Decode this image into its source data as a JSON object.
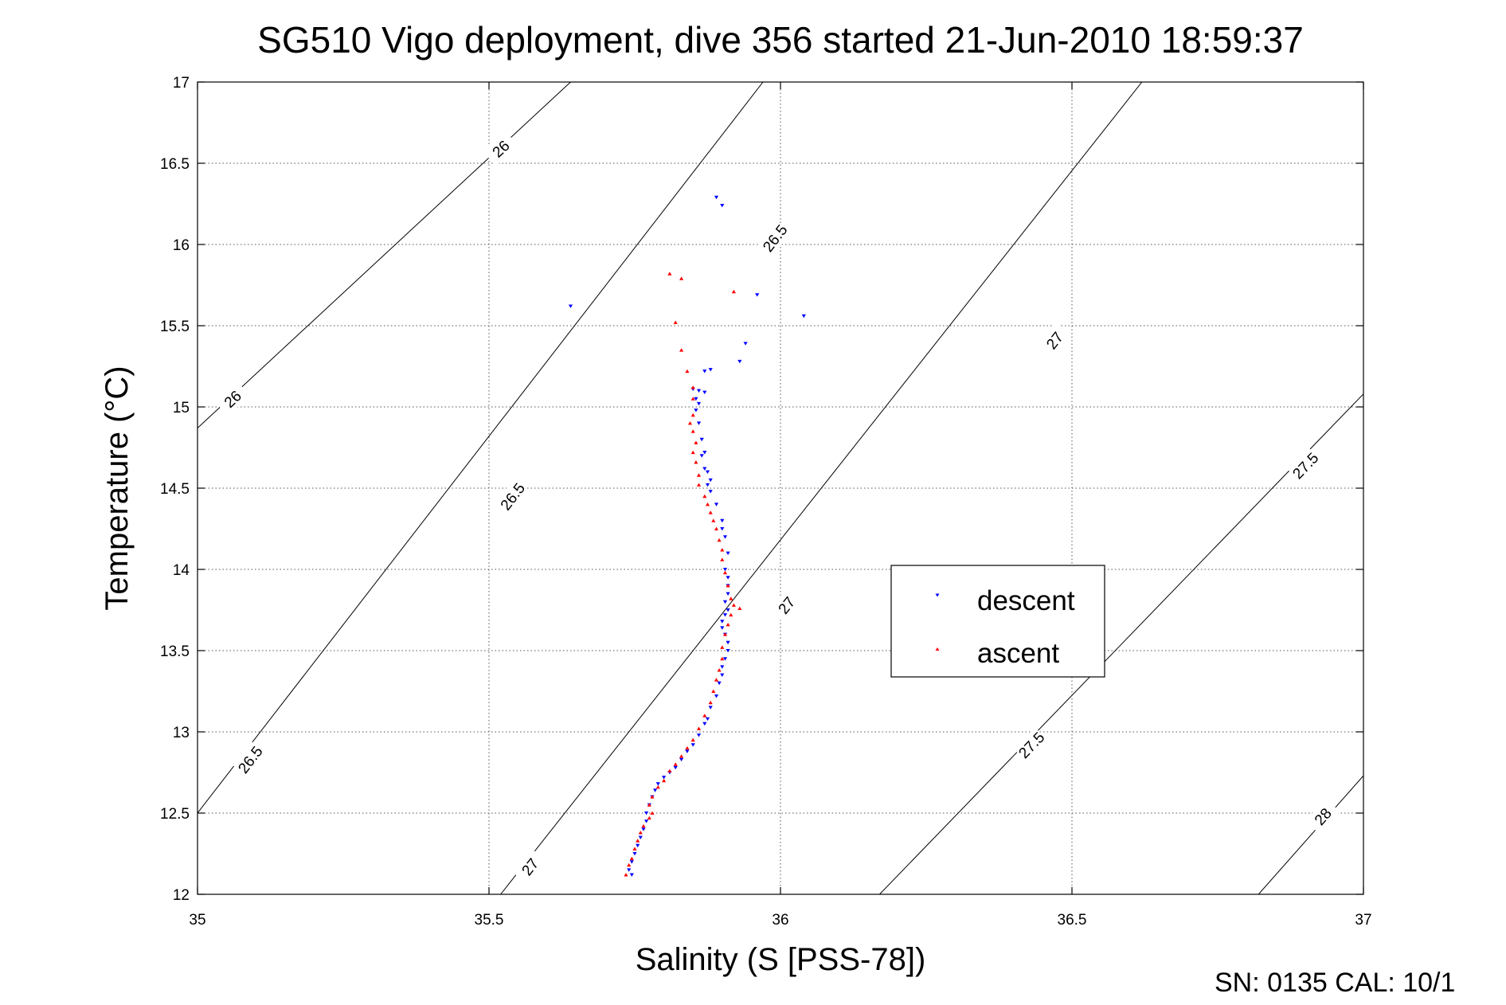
{
  "chart_data": {
    "type": "scatter",
    "title": "SG510 Vigo deployment, dive 356 started 21-Jun-2010 18:59:37",
    "xlabel": "Salinity (S [PSS-78])",
    "ylabel": "Temperature (°C)",
    "xlim": [
      35,
      37
    ],
    "ylim": [
      12,
      17
    ],
    "xticks": [
      35,
      35.5,
      36,
      36.5,
      37
    ],
    "yticks": [
      12,
      12.5,
      13,
      13.5,
      14,
      14.5,
      15,
      15.5,
      16,
      16.5,
      17
    ],
    "xtick_labels": [
      "35",
      "35.5",
      "36",
      "36.5",
      "37"
    ],
    "ytick_labels": [
      "12",
      "12.5",
      "13",
      "13.5",
      "14",
      "14.5",
      "15",
      "15.5",
      "16",
      "16.5",
      "17"
    ],
    "grid": true,
    "legend_position": "center-right",
    "footer": "SN: 0135  CAL: 10/1",
    "isopycnals": [
      {
        "sigma": "26",
        "points": [
          [
            35.0,
            14.87
          ],
          [
            35.64,
            17.0
          ]
        ],
        "labels": [
          {
            "s": 35.06,
            "t": 15.05
          },
          {
            "s": 35.52,
            "t": 16.59
          }
        ]
      },
      {
        "sigma": "26.5",
        "points": [
          [
            35.0,
            12.5
          ],
          [
            35.97,
            17.0
          ]
        ],
        "labels": [
          {
            "s": 35.09,
            "t": 12.83
          },
          {
            "s": 35.54,
            "t": 14.45
          },
          {
            "s": 35.99,
            "t": 16.04
          }
        ]
      },
      {
        "sigma": "27",
        "points": [
          [
            35.52,
            12.0
          ],
          [
            36.62,
            17.0
          ]
        ],
        "labels": [
          {
            "s": 35.57,
            "t": 12.17
          },
          {
            "s": 36.01,
            "t": 13.78
          },
          {
            "s": 36.47,
            "t": 15.41
          }
        ]
      },
      {
        "sigma": "27.5",
        "points": [
          [
            36.17,
            12.0
          ],
          [
            37.0,
            15.08
          ]
        ],
        "labels": [
          {
            "s": 36.43,
            "t": 12.92
          },
          {
            "s": 36.9,
            "t": 14.64
          }
        ]
      },
      {
        "sigma": "28",
        "points": [
          [
            36.82,
            12.0
          ],
          [
            37.0,
            12.73
          ]
        ],
        "labels": [
          {
            "s": 36.93,
            "t": 12.48
          }
        ]
      }
    ],
    "series": [
      {
        "name": "descent",
        "color": "#0000ff",
        "marker": "triangle-down",
        "points": [
          [
            35.89,
            16.29
          ],
          [
            35.9,
            16.24
          ],
          [
            35.64,
            15.62
          ],
          [
            35.96,
            15.69
          ],
          [
            36.04,
            15.56
          ],
          [
            35.94,
            15.39
          ],
          [
            35.93,
            15.28
          ],
          [
            35.88,
            15.23
          ],
          [
            35.87,
            15.22
          ],
          [
            35.85,
            15.11
          ],
          [
            35.86,
            15.1
          ],
          [
            35.87,
            15.09
          ],
          [
            35.855,
            15.05
          ],
          [
            35.86,
            15.02
          ],
          [
            35.855,
            14.98
          ],
          [
            35.86,
            14.9
          ],
          [
            35.865,
            14.8
          ],
          [
            35.87,
            14.72
          ],
          [
            35.865,
            14.7
          ],
          [
            35.87,
            14.62
          ],
          [
            35.875,
            14.6
          ],
          [
            35.88,
            14.55
          ],
          [
            35.875,
            14.52
          ],
          [
            35.88,
            14.48
          ],
          [
            35.89,
            14.4
          ],
          [
            35.9,
            14.3
          ],
          [
            35.9,
            14.25
          ],
          [
            35.905,
            14.2
          ],
          [
            35.91,
            14.1
          ],
          [
            35.905,
            14.0
          ],
          [
            35.91,
            13.95
          ],
          [
            35.91,
            13.9
          ],
          [
            35.91,
            13.85
          ],
          [
            35.905,
            13.8
          ],
          [
            35.91,
            13.75
          ],
          [
            35.905,
            13.72
          ],
          [
            35.9,
            13.68
          ],
          [
            35.9,
            13.64
          ],
          [
            35.905,
            13.6
          ],
          [
            35.91,
            13.55
          ],
          [
            35.91,
            13.5
          ],
          [
            35.905,
            13.45
          ],
          [
            35.9,
            13.4
          ],
          [
            35.9,
            13.35
          ],
          [
            35.895,
            13.3
          ],
          [
            35.89,
            13.22
          ],
          [
            35.88,
            13.15
          ],
          [
            35.875,
            13.08
          ],
          [
            35.87,
            13.05
          ],
          [
            35.86,
            12.98
          ],
          [
            35.85,
            12.92
          ],
          [
            35.84,
            12.88
          ],
          [
            35.83,
            12.83
          ],
          [
            35.82,
            12.78
          ],
          [
            35.81,
            12.75
          ],
          [
            35.8,
            12.72
          ],
          [
            35.79,
            12.68
          ],
          [
            35.785,
            12.64
          ],
          [
            35.78,
            12.6
          ],
          [
            35.775,
            12.55
          ],
          [
            35.77,
            12.5
          ],
          [
            35.77,
            12.45
          ],
          [
            35.765,
            12.4
          ],
          [
            35.76,
            12.35
          ],
          [
            35.755,
            12.3
          ],
          [
            35.75,
            12.25
          ],
          [
            35.745,
            12.2
          ],
          [
            35.74,
            12.15
          ],
          [
            35.745,
            12.12
          ]
        ]
      },
      {
        "name": "ascent",
        "color": "#ff0000",
        "marker": "triangle-up",
        "points": [
          [
            35.81,
            15.82
          ],
          [
            35.83,
            15.79
          ],
          [
            35.92,
            15.71
          ],
          [
            35.82,
            15.52
          ],
          [
            35.83,
            15.35
          ],
          [
            35.84,
            15.22
          ],
          [
            35.85,
            15.12
          ],
          [
            35.85,
            15.05
          ],
          [
            35.85,
            14.95
          ],
          [
            35.845,
            14.9
          ],
          [
            35.85,
            14.85
          ],
          [
            35.855,
            14.78
          ],
          [
            35.85,
            14.72
          ],
          [
            35.855,
            14.66
          ],
          [
            35.86,
            14.58
          ],
          [
            35.86,
            14.52
          ],
          [
            35.87,
            14.45
          ],
          [
            35.875,
            14.4
          ],
          [
            35.88,
            14.35
          ],
          [
            35.885,
            14.3
          ],
          [
            35.89,
            14.25
          ],
          [
            35.895,
            14.18
          ],
          [
            35.9,
            14.12
          ],
          [
            35.9,
            14.06
          ],
          [
            35.905,
            13.98
          ],
          [
            35.91,
            13.9
          ],
          [
            35.915,
            13.82
          ],
          [
            35.92,
            13.78
          ],
          [
            35.93,
            13.76
          ],
          [
            35.915,
            13.72
          ],
          [
            35.91,
            13.66
          ],
          [
            35.905,
            13.6
          ],
          [
            35.9,
            13.52
          ],
          [
            35.9,
            13.45
          ],
          [
            35.895,
            13.38
          ],
          [
            35.89,
            13.32
          ],
          [
            35.885,
            13.25
          ],
          [
            35.88,
            13.18
          ],
          [
            35.87,
            13.1
          ],
          [
            35.86,
            13.02
          ],
          [
            35.85,
            12.95
          ],
          [
            35.84,
            12.9
          ],
          [
            35.83,
            12.85
          ],
          [
            35.82,
            12.8
          ],
          [
            35.81,
            12.76
          ],
          [
            35.8,
            12.7
          ],
          [
            35.79,
            12.66
          ],
          [
            35.78,
            12.6
          ],
          [
            35.775,
            12.55
          ],
          [
            35.78,
            12.5
          ],
          [
            35.775,
            12.47
          ],
          [
            35.765,
            12.42
          ],
          [
            35.76,
            12.38
          ],
          [
            35.755,
            12.33
          ],
          [
            35.75,
            12.28
          ],
          [
            35.745,
            12.22
          ],
          [
            35.74,
            12.18
          ],
          [
            35.735,
            12.12
          ]
        ]
      }
    ]
  }
}
